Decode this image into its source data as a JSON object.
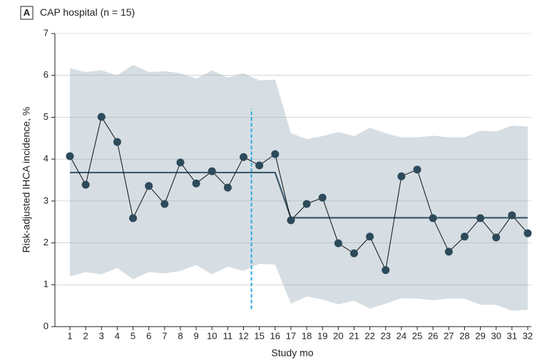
{
  "chart_data": {
    "type": "line",
    "panel": "A",
    "title": "CAP hospital (n = 15)",
    "y_label": "Risk-adjusted IHCA incidence, %",
    "x_label": "Study mo",
    "categories": [
      "1",
      "2",
      "3",
      "4",
      "5",
      "6",
      "7",
      "8",
      "9",
      "10",
      "11",
      "12",
      "15",
      "16",
      "17",
      "18",
      "19",
      "20",
      "21",
      "22",
      "23",
      "24",
      "25",
      "26",
      "27",
      "28",
      "29",
      "30",
      "31",
      "32"
    ],
    "series": [
      {
        "color": "#2d4a5b",
        "values": [
          4.07,
          3.39,
          5.01,
          4.41,
          2.59,
          3.36,
          2.93,
          3.92,
          3.42,
          3.71,
          3.32,
          4.05,
          3.85,
          4.12,
          2.54,
          2.93,
          3.08,
          1.99,
          1.75,
          2.15,
          1.35,
          3.59,
          3.75,
          2.59,
          1.79,
          2.15,
          2.59,
          2.13,
          2.66,
          2.23
        ]
      },
      {
        "color": "#3d5a6b",
        "values": [
          3.68,
          3.68,
          3.68,
          3.68,
          3.68,
          3.68,
          3.68,
          3.68,
          3.68,
          3.68,
          3.68,
          3.68,
          3.68,
          3.68,
          2.6,
          2.6,
          2.6,
          2.6,
          2.6,
          2.6,
          2.6,
          2.6,
          2.6,
          2.6,
          2.6,
          2.6,
          2.6,
          2.6,
          2.6,
          2.6
        ]
      }
    ],
    "band": {
      "color": "#d6dee3",
      "upper": [
        6.17,
        6.08,
        6.12,
        6.0,
        6.25,
        6.08,
        6.1,
        6.05,
        5.92,
        6.12,
        5.95,
        6.05,
        5.88,
        5.9,
        4.62,
        4.48,
        4.55,
        4.65,
        4.55,
        4.75,
        4.62,
        4.52,
        4.52,
        4.56,
        4.52,
        4.52,
        4.68,
        4.66,
        4.8,
        4.78
      ],
      "lower": [
        1.2,
        1.3,
        1.25,
        1.4,
        1.13,
        1.3,
        1.27,
        1.33,
        1.47,
        1.25,
        1.43,
        1.33,
        1.5,
        1.48,
        0.55,
        0.72,
        0.65,
        0.53,
        0.62,
        0.43,
        0.55,
        0.68,
        0.67,
        0.63,
        0.67,
        0.67,
        0.52,
        0.52,
        0.38,
        0.4
      ]
    },
    "vline": {
      "x": 11.5,
      "y": [
        0.42,
        5.2
      ],
      "color": "#29a8e0"
    },
    "ylim": [
      0,
      7
    ],
    "yticks": [
      0,
      1,
      2,
      3,
      4,
      5,
      6,
      7
    ],
    "grid": true
  }
}
